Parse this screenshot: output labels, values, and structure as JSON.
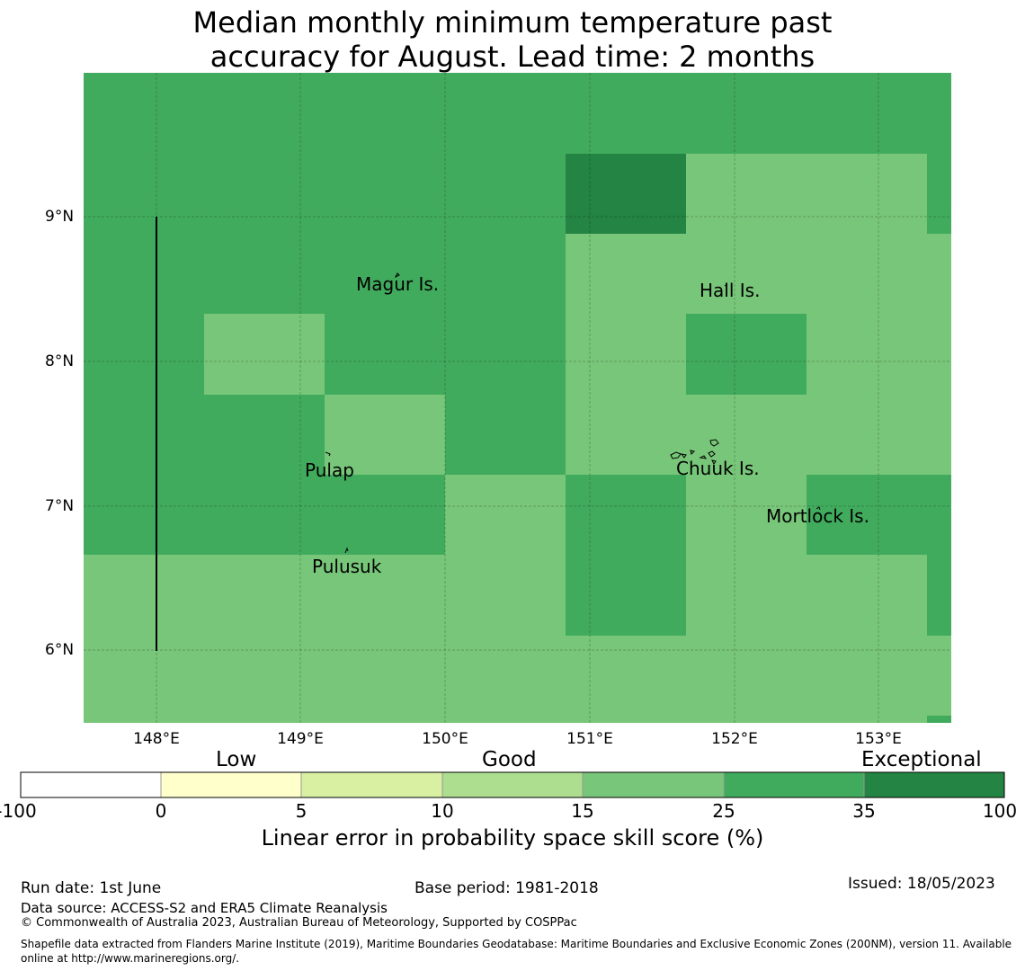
{
  "title": {
    "line1": "Median monthly minimum temperature past",
    "line2": "accuracy for August. Lead time: 2 months"
  },
  "map": {
    "lon_range": [
      147.5,
      153.5
    ],
    "lat_range": [
      5.5,
      10.0
    ],
    "x_ticks": [
      "148°E",
      "149°E",
      "150°E",
      "151°E",
      "152°E",
      "153°E"
    ],
    "y_ticks": [
      "9°N",
      "8°N",
      "7°N",
      "6°N"
    ],
    "grid": true,
    "place_labels": [
      "Magur Is.",
      "Hall Is.",
      "Pulap",
      "Chuuk Is.",
      "Mortlock Is.",
      "Pulusuk"
    ],
    "colors": {
      "c15_25": "#78c679",
      "c25_35": "#41ab5d",
      "c35_100": "#238443"
    }
  },
  "colorbar": {
    "categories": [
      "Low",
      "Good",
      "Exceptional"
    ],
    "ticks": [
      "-100",
      "0",
      "5",
      "10",
      "15",
      "25",
      "35",
      "100"
    ],
    "colors": [
      "#ffffff",
      "#ffffcc",
      "#d9f0a3",
      "#addd8e",
      "#78c679",
      "#41ab5d",
      "#238443"
    ],
    "label": "Linear error in probability space skill score (%)"
  },
  "footer": {
    "run_date": "Run date: 1st June",
    "base_period": "Base period: 1981-2018",
    "issued": "Issued: 18/05/2023",
    "data_source": "Data source: ACCESS-S2 and ERA5 Climate Reanalysis",
    "copyright": "© Commonwealth of Australia 2023, Australian Bureau of Meteorology, Supported by COSPPac",
    "shapefile_1": "Shapefile data extracted from Flanders Marine Institute (2019), Maritime Boundaries Geodatabase: Maritime Boundaries and Exclusive Economic Zones (200NM), version 11. Available",
    "shapefile_2": "online at http://www.marineregions.org/."
  }
}
